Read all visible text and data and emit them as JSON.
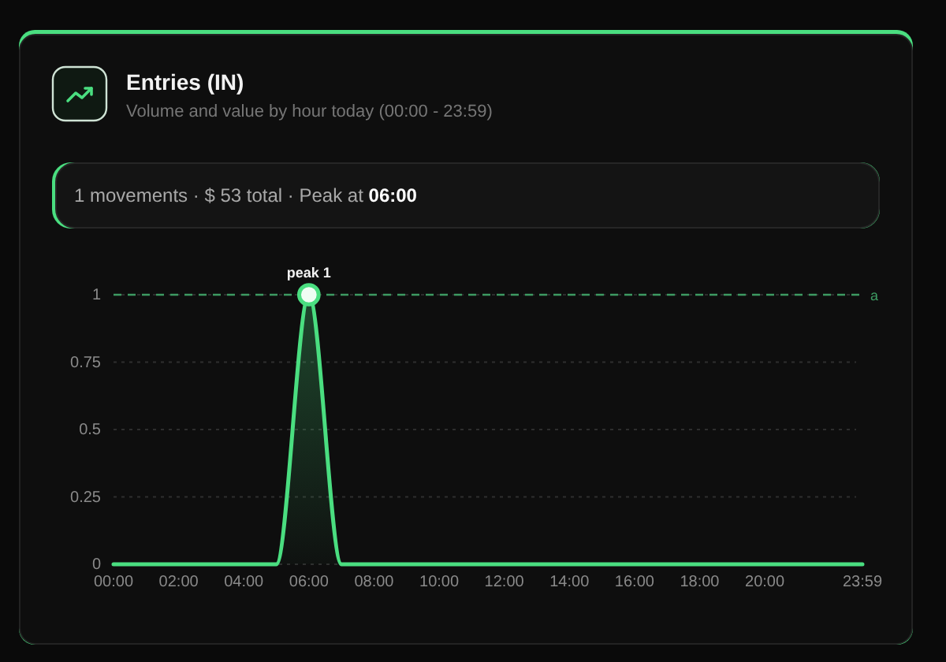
{
  "chart_data": {
    "type": "area",
    "title": "Entries (IN)",
    "subtitle": "Volume and value by hour today (00:00 - 23:59)",
    "annotations": [
      "1 movements · $ 53 total · Peak at 06:00",
      {
        "text": "peak 1",
        "x": "06:00",
        "y": 1
      }
    ],
    "categories": [
      "00:00",
      null,
      "02:00",
      null,
      "04:00",
      null,
      "06:00",
      null,
      "08:00",
      null,
      "10:00",
      null,
      "12:00",
      null,
      "14:00",
      null,
      "16:00",
      null,
      "18:00",
      null,
      "20:00",
      null,
      null,
      "23:59"
    ],
    "series": [
      {
        "color": "#4ade80",
        "values": [
          0,
          0,
          0,
          0,
          0,
          0,
          1,
          0,
          0,
          0,
          0,
          0,
          0,
          0,
          0,
          0,
          0,
          0,
          0,
          0,
          0,
          0,
          0,
          0
        ]
      },
      {
        "type": "scatter",
        "color": "#4ade80",
        "marker": "circle",
        "values": [
          null,
          null,
          null,
          null,
          null,
          null,
          1,
          null,
          null,
          null,
          null,
          null,
          null,
          null,
          null,
          null,
          null,
          null,
          null,
          null,
          null,
          null,
          null,
          null
        ]
      }
    ],
    "ylim": [
      0,
      1
    ],
    "yticks": [
      0,
      0.25,
      0.5,
      0.75,
      1
    ],
    "grid": "y",
    "ref_lines": [
      {
        "axis": "y",
        "value": 1,
        "label": "a",
        "color": "#3d9a62",
        "line_style": "dashed"
      }
    ]
  }
}
